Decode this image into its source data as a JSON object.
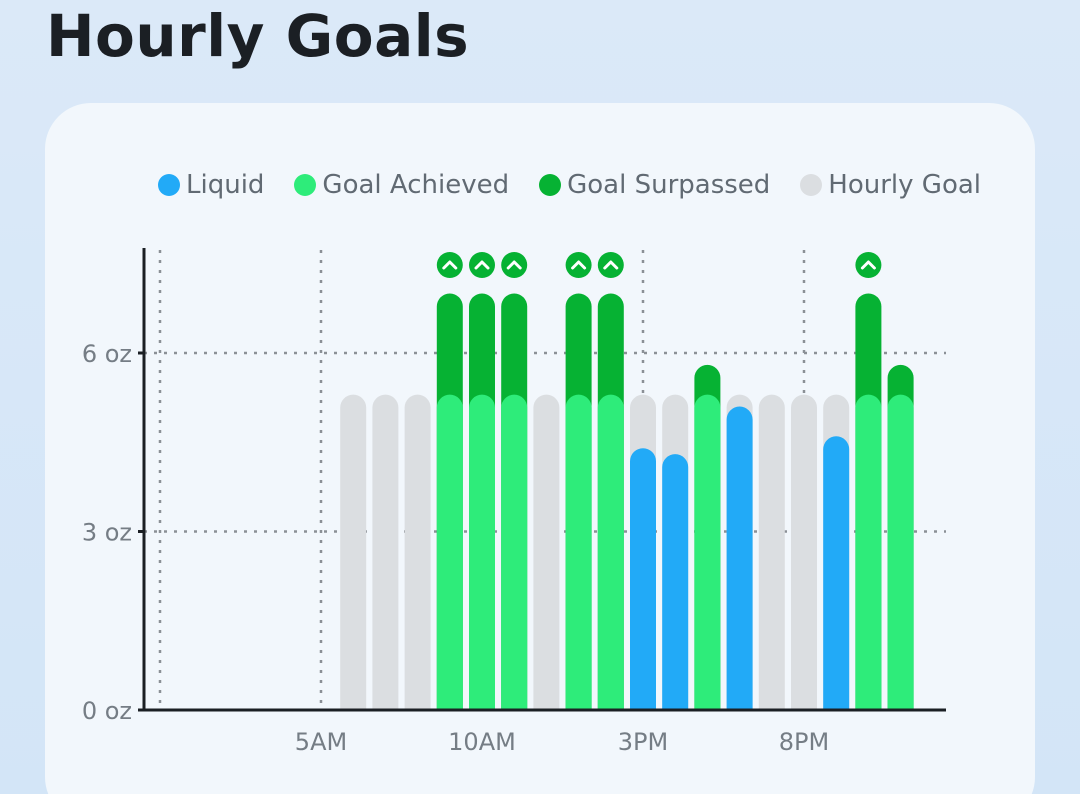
{
  "page": {
    "title": "Hourly Goals"
  },
  "legend": [
    {
      "label": "Liquid",
      "color": "#22aaf7",
      "icon": "liquid-dot-icon"
    },
    {
      "label": "Goal Achieved",
      "color": "#2eec7a",
      "icon": "goal-achieved-dot-icon"
    },
    {
      "label": "Goal Surpassed",
      "color": "#06b233",
      "icon": "goal-surpassed-dot-icon"
    },
    {
      "label": "Hourly Goal",
      "color": "#dbdee1",
      "icon": "hourly-goal-dot-icon"
    }
  ],
  "colors": {
    "liquid": "#22aaf7",
    "goal_achieved": "#2eec7a",
    "goal_surpassed": "#06b233",
    "hourly_goal": "#dbdee1",
    "axis": "#1b1f24",
    "grid": "#8b9096"
  },
  "chart_data": {
    "type": "bar",
    "title": "Hourly Goals",
    "xlabel": "",
    "ylabel": "",
    "ylim": [
      0,
      7.5
    ],
    "y_ticks": [
      0,
      3,
      6
    ],
    "y_tick_labels": [
      "0 oz",
      "3 oz",
      "6 oz"
    ],
    "x_tick_hours": [
      5,
      10,
      15,
      20
    ],
    "x_tick_labels": [
      "5AM",
      "10AM",
      "3PM",
      "8PM"
    ],
    "x_gridline_hours": [
      0,
      5,
      15,
      20
    ],
    "hours": [
      0,
      1,
      2,
      3,
      4,
      5,
      6,
      7,
      8,
      9,
      10,
      11,
      12,
      13,
      14,
      15,
      16,
      17,
      18,
      19,
      20,
      21,
      22,
      23,
      24
    ],
    "hourly_goal": [
      null,
      null,
      null,
      null,
      null,
      null,
      5.3,
      5.3,
      5.3,
      5.3,
      5.3,
      5.3,
      5.3,
      5.3,
      5.3,
      5.3,
      5.3,
      5.3,
      5.3,
      5.3,
      5.3,
      5.3,
      5.3,
      5.3,
      null
    ],
    "liquid": [
      0,
      0,
      0,
      0,
      0,
      0,
      0,
      0,
      0,
      7.0,
      7.0,
      7.0,
      0,
      7.0,
      7.0,
      4.4,
      4.3,
      5.8,
      5.1,
      0,
      0,
      4.6,
      7.0,
      5.8,
      0
    ],
    "grid": true,
    "legend_position": "top"
  }
}
